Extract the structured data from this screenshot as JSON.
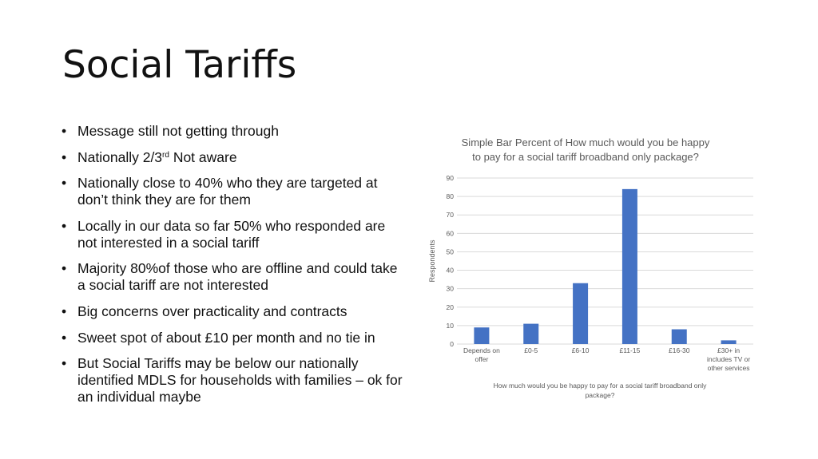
{
  "slide": {
    "title": "Social Tariffs",
    "bullets": [
      {
        "text": "Message still not getting through"
      },
      {
        "text": "Nationally 2/3",
        "sup": "rd",
        "rest": " Not aware"
      },
      {
        "text": "Nationally close to 40% who they are targeted at don’t think they are for them"
      },
      {
        "text": "Locally in our data so far 50% who responded are not interested in a social tariff"
      },
      {
        "text": "Majority 80%of those who are offline and could take a social tariff are not interested"
      },
      {
        "text": "Big concerns over practicality and contracts"
      },
      {
        "text": "Sweet spot of about £10 per month and no tie in"
      },
      {
        "text": "But Social Tariffs may be below our nationally identified MDLS for households with families – ok for an individual maybe"
      }
    ]
  },
  "chart_data": {
    "type": "bar",
    "title_lines": [
      "Simple Bar Percent of How much would you be happy",
      "to pay for a social tariff broadband only package?"
    ],
    "categories": [
      [
        "Depends on",
        "offer"
      ],
      [
        "£0-5"
      ],
      [
        "£6-10"
      ],
      [
        "£11-15"
      ],
      [
        "£16-30"
      ],
      [
        "£30+ in",
        "includes TV or",
        "other services"
      ]
    ],
    "values": [
      9,
      11,
      33,
      84,
      8,
      2
    ],
    "ylabel": "Respondents",
    "xlabel_lines": [
      "How much would you be happy to pay for a social tariff broadband only",
      "package?"
    ],
    "ylim": [
      0,
      90
    ],
    "yticks": [
      0,
      10,
      20,
      30,
      40,
      50,
      60,
      70,
      80,
      90
    ],
    "grid": true,
    "bar_color": "#4472C4",
    "grid_color": "#d9d9d9"
  }
}
